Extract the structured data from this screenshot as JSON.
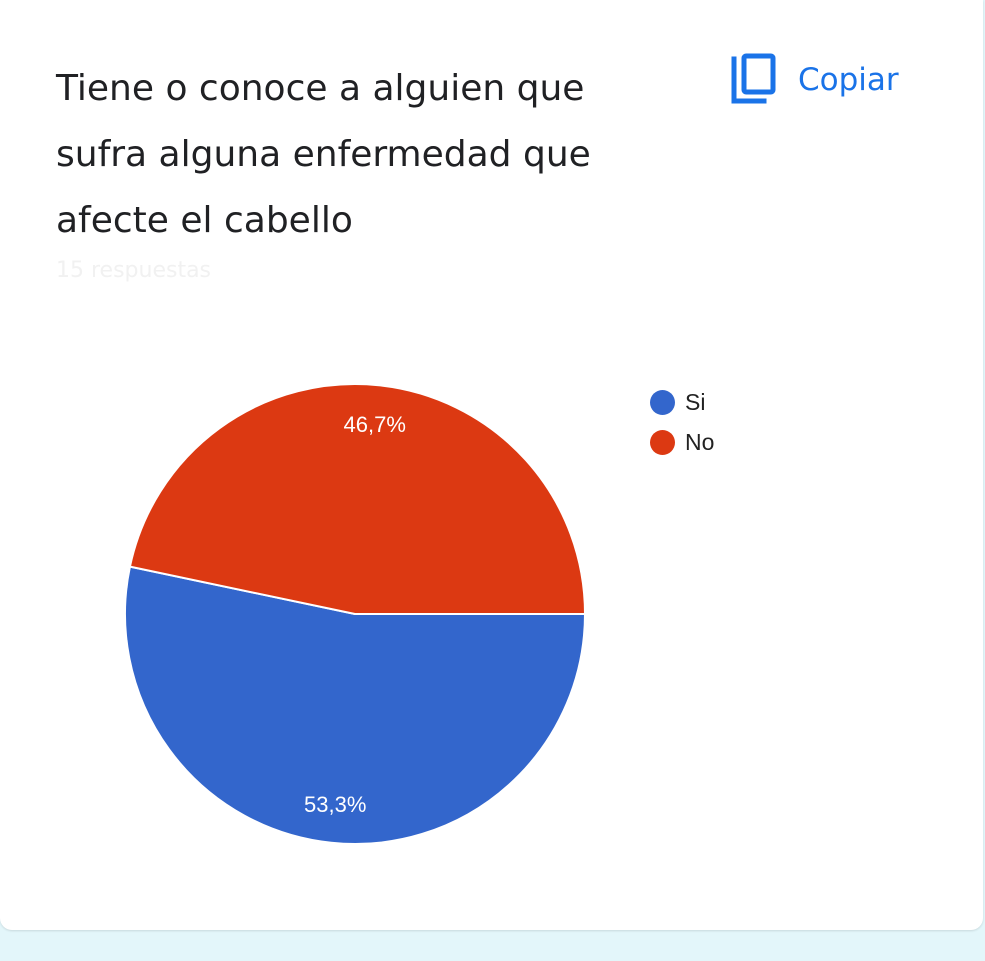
{
  "question": {
    "title_lines": [
      "Tiene o conoce a alguien que",
      "sufra alguna enfermedad que",
      "afecte el cabello"
    ],
    "responses": "15 respuestas"
  },
  "copy_button": {
    "label": "Copiar",
    "icon": "copy-icon",
    "color": "#1a73e8"
  },
  "chart_data": {
    "type": "pie",
    "legend_position": "right",
    "slices": [
      {
        "name": "Si",
        "value": 53.3,
        "label": "53,3%",
        "color": "#3366cc"
      },
      {
        "name": "No",
        "value": 46.7,
        "label": "46,7%",
        "color": "#dc3912"
      }
    ]
  }
}
